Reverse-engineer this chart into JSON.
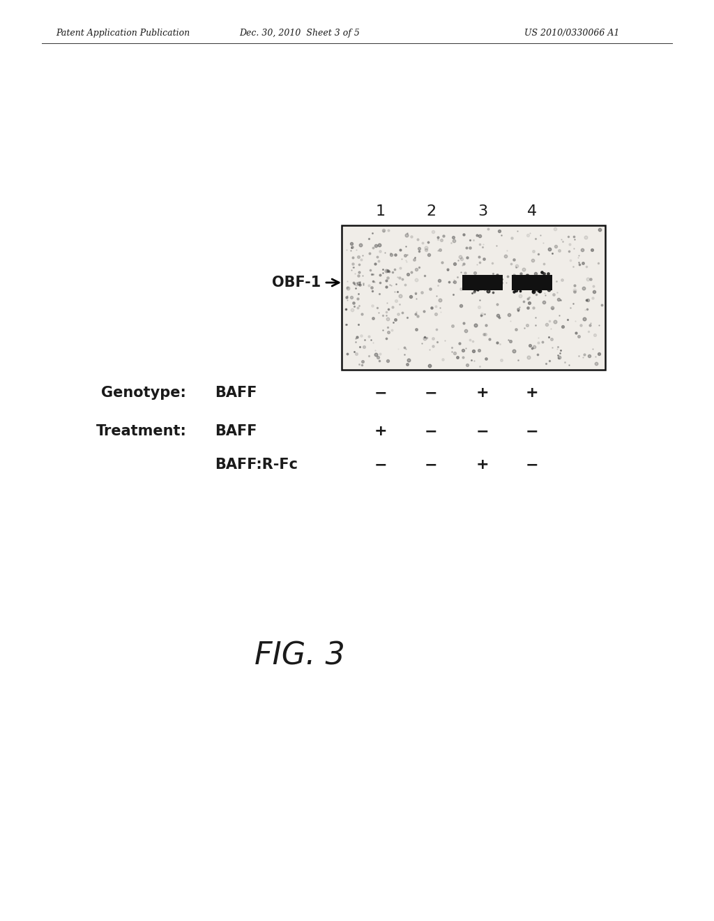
{
  "page_title_left": "Patent Application Publication",
  "page_title_center": "Dec. 30, 2010  Sheet 3 of 5",
  "page_title_right": "US 2010/0330066 A1",
  "header_fontsize": 9,
  "fig_label": "FIG. 3",
  "fig_label_fontsize": 28,
  "obf1_label": "OBF-1",
  "lane_numbers": [
    "1",
    "2",
    "3",
    "4"
  ],
  "genotype_label": "Genotype:",
  "genotype_item": "BAFF",
  "genotype_values": [
    "−",
    "−",
    "+",
    "+"
  ],
  "treatment_label": "Treatment:",
  "treatment_baff_label": "BAFF",
  "treatment_baff_values": [
    "+",
    "−",
    "−",
    "−"
  ],
  "treatment_baffr_label": "BAFF:R-Fc",
  "treatment_baffr_values": [
    "−",
    "−",
    "+",
    "−"
  ],
  "background_color": "#ffffff",
  "text_color": "#1a1a1a"
}
